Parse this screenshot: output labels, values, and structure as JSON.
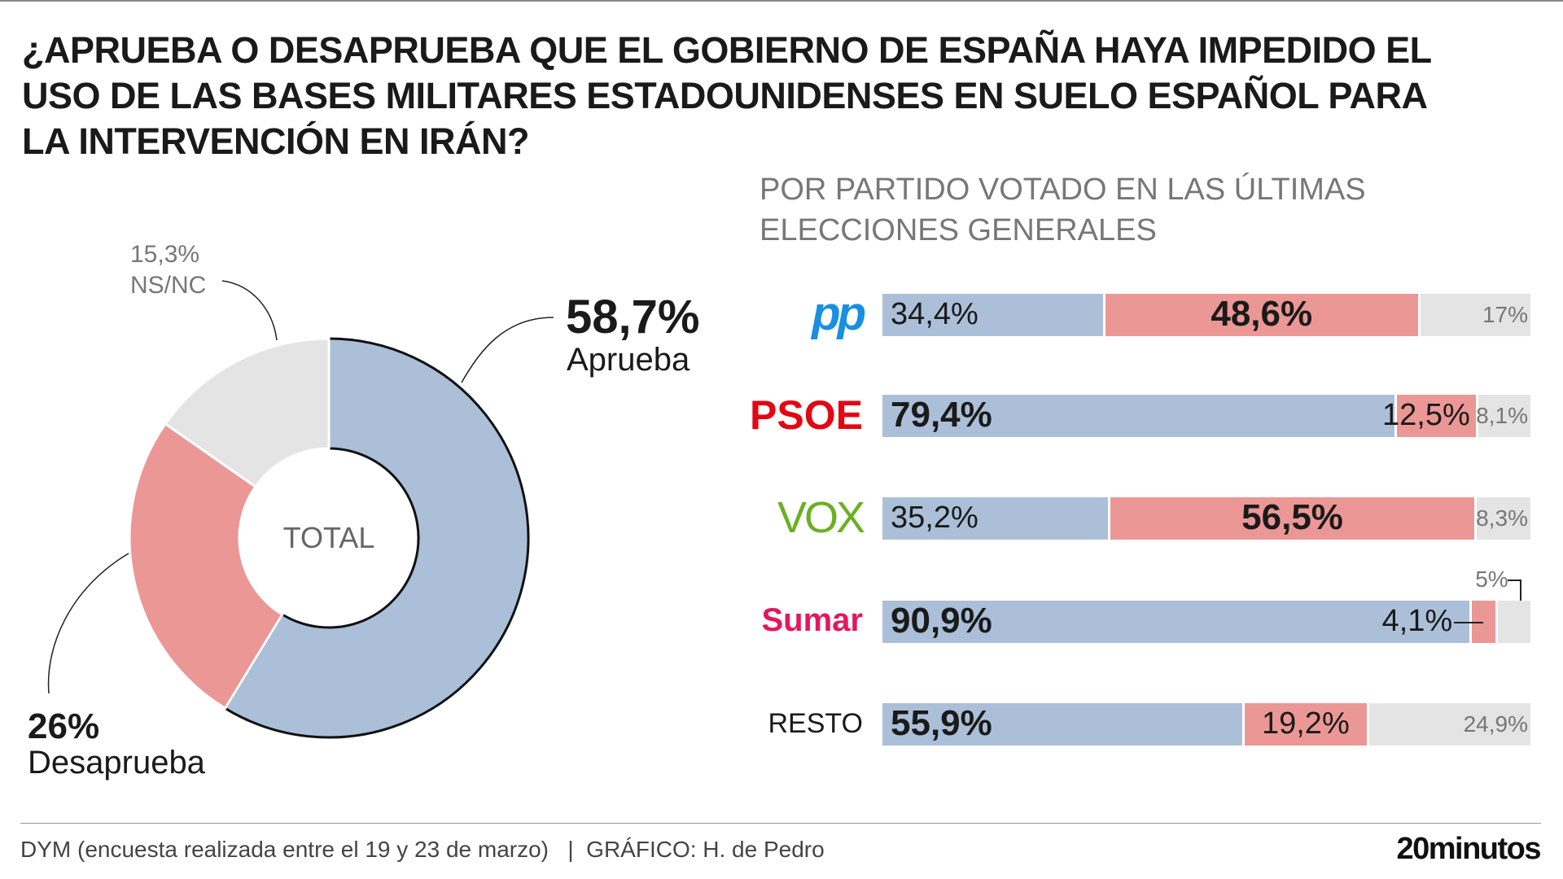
{
  "title": "¿Aprueba o desaprueba que el Gobierno de España haya impedido el uso de las bases militares estadounidenses en suelo español para la intervención en Irán?",
  "subtitle": "POR PARTIDO VOTADO EN LAS ÚLTIMAS ELECCIONES GENERALES",
  "colors": {
    "aprueba": "#abbfd9",
    "desaprueba": "#eb9795",
    "nsnc": "#e4e4e4"
  },
  "chart_data": [
    {
      "type": "pie",
      "center_label": "TOTAL",
      "slices": [
        {
          "name": "Aprueba",
          "value": 58.7,
          "label": "58,7%"
        },
        {
          "name": "Desaprueba",
          "value": 26,
          "label": "26%"
        },
        {
          "name": "NS/NC",
          "value": 15.3,
          "label": "15,3%"
        }
      ]
    },
    {
      "type": "bar",
      "stacked": true,
      "orientation": "horizontal",
      "categories": [
        "PP",
        "PSOE",
        "VOX",
        "Sumar",
        "RESTO"
      ],
      "series": [
        {
          "key": "aprueba",
          "values": [
            34.4,
            79.4,
            35.2,
            90.9,
            55.9
          ],
          "labels": [
            "34,4%",
            "79,4%",
            "35,2%",
            "90,9%",
            "55,9%"
          ]
        },
        {
          "key": "desaprueba",
          "values": [
            48.6,
            12.5,
            56.5,
            4.1,
            19.2
          ],
          "labels": [
            "48,6%",
            "12,5%",
            "56,5%",
            "4,1%",
            "19,2%"
          ]
        },
        {
          "key": "nsnc",
          "values": [
            17,
            8.1,
            8.3,
            5,
            24.9
          ],
          "labels": [
            "17%",
            "8,1%",
            "8,3%",
            "5%",
            "24,9%"
          ]
        }
      ],
      "party_colors": [
        "#1a8fe0",
        "#e30613",
        "#6ab023",
        "#e5175b",
        "#1a1a1a"
      ],
      "party_labels": [
        "pp",
        "PSOE",
        "VOX",
        "Sumar",
        "RESTO"
      ]
    }
  ],
  "footer": {
    "source": "DYM (encuesta realizada entre el 19 y 23 de marzo)   |  GRÁFICO: H. de Pedro",
    "brand": "20minutos"
  }
}
